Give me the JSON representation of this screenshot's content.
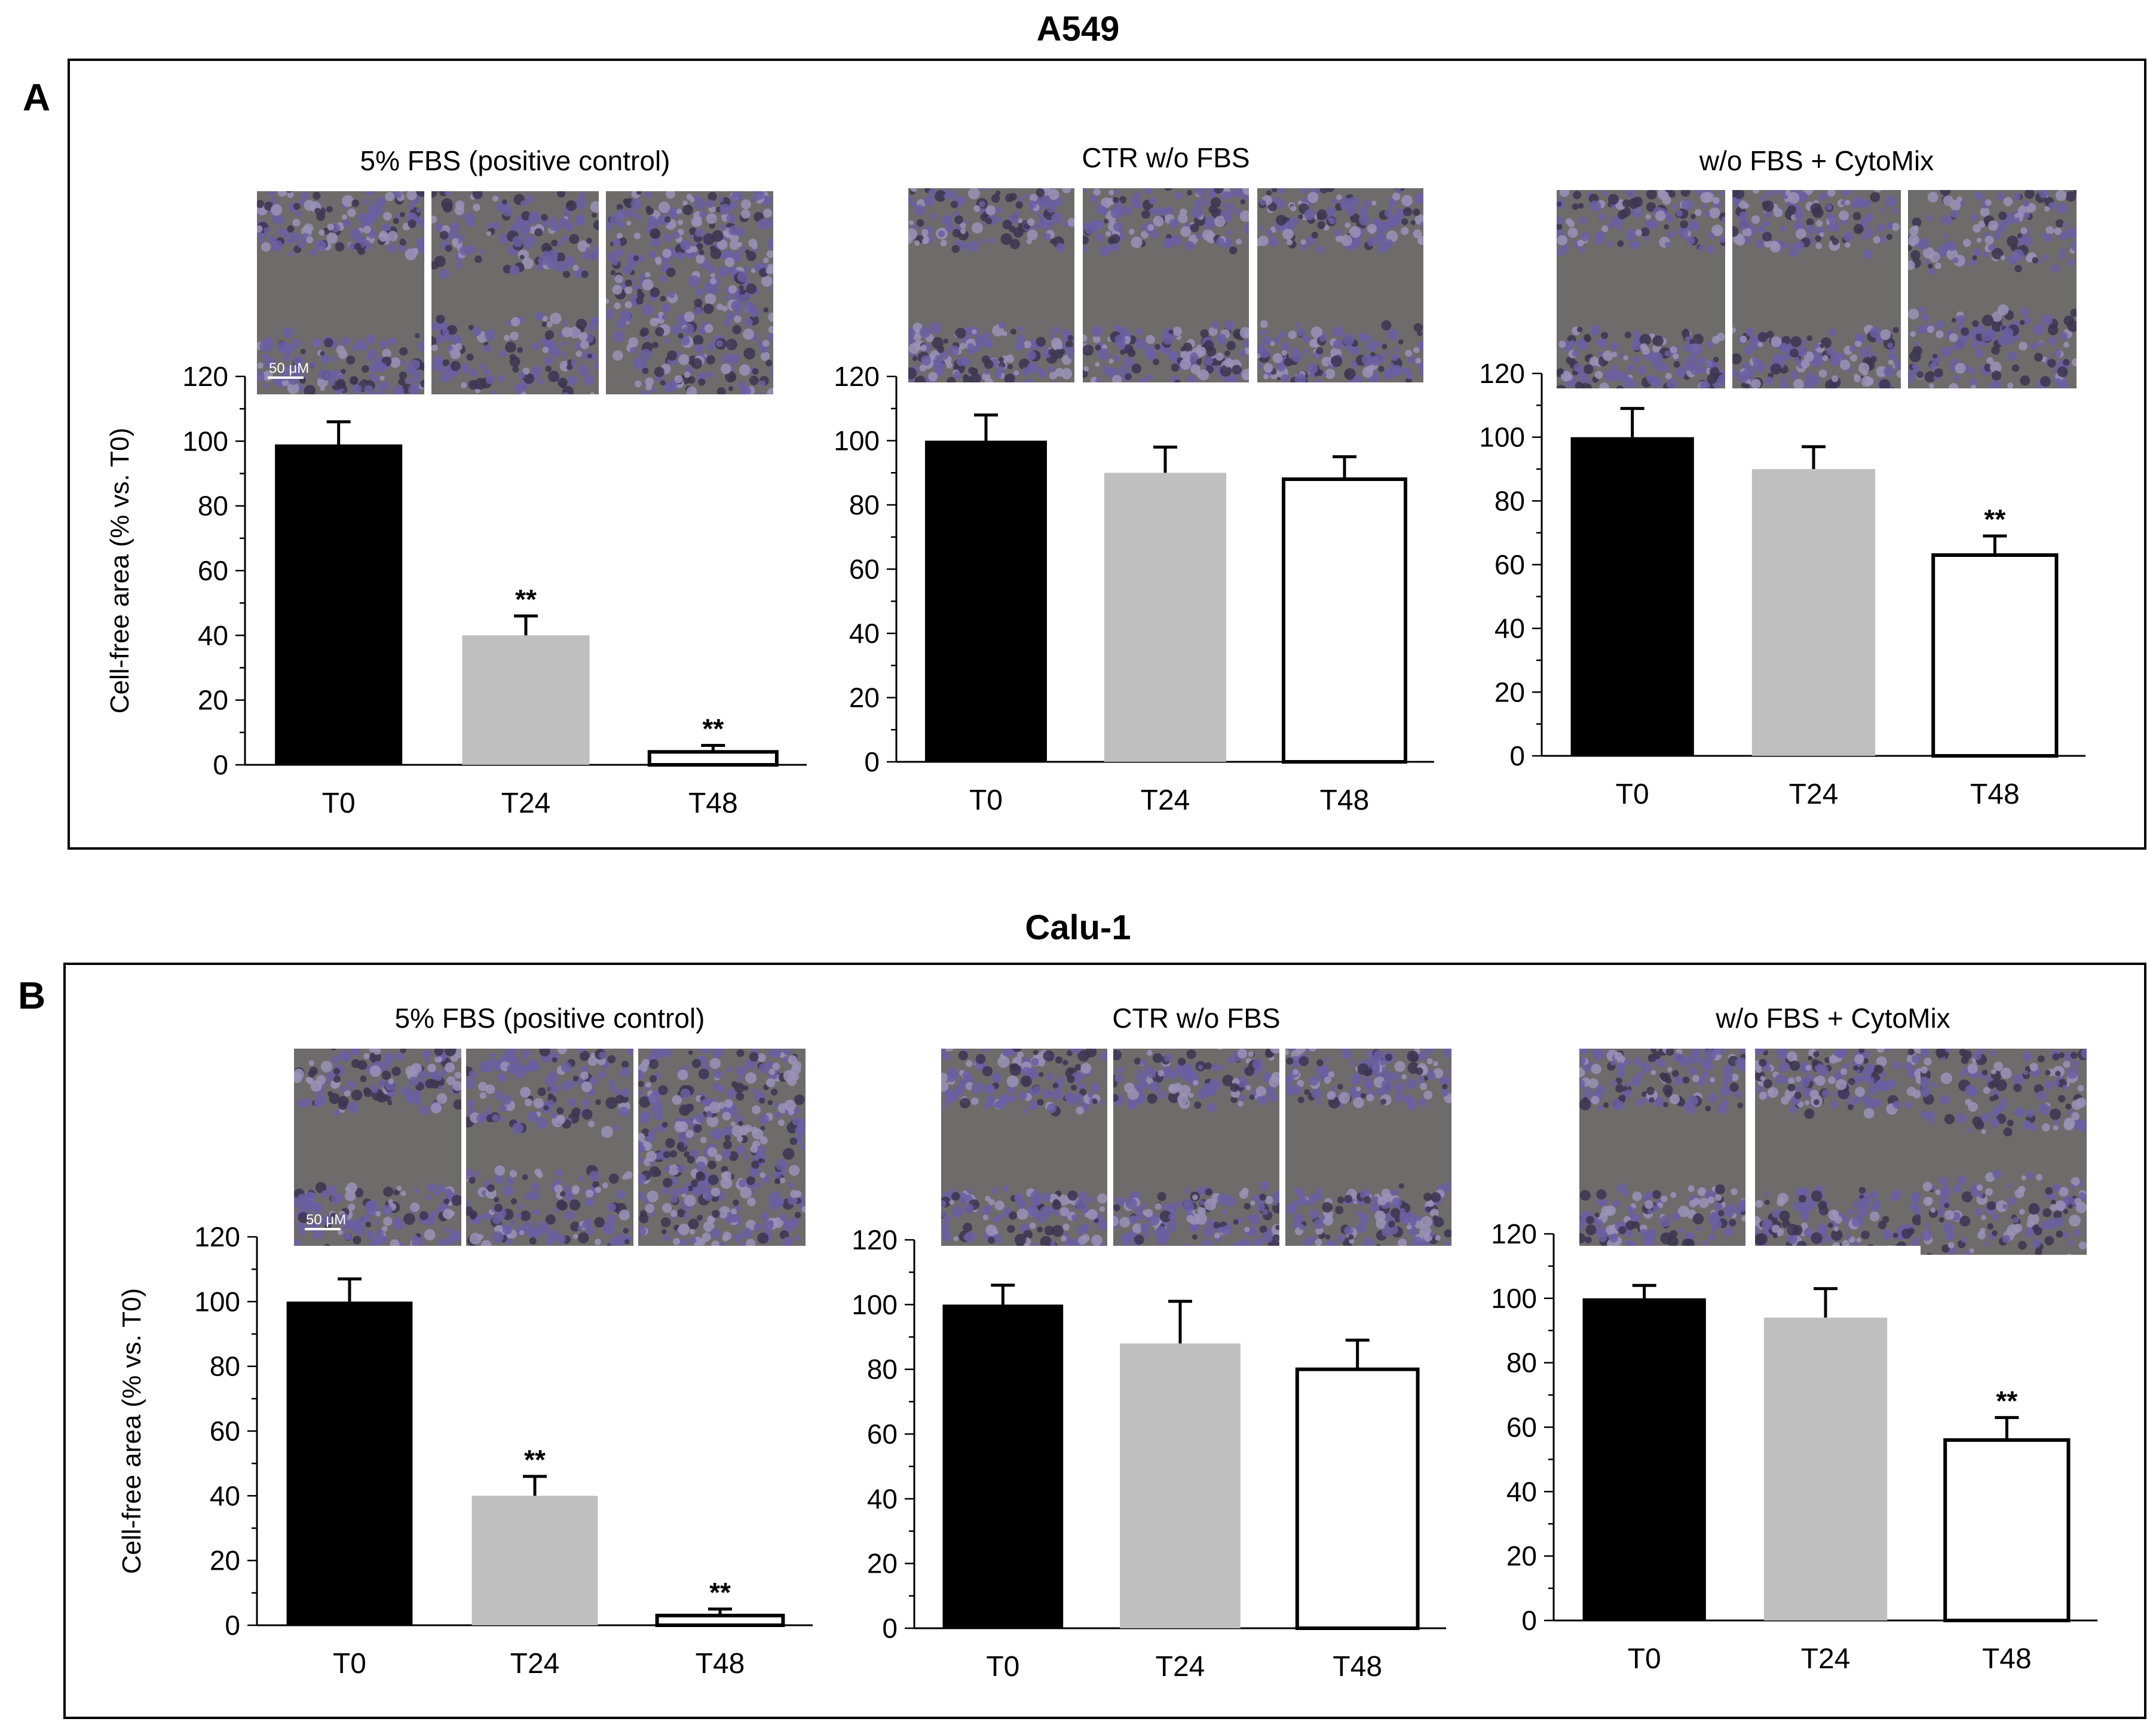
{
  "figure": {
    "y_axis_label": "Cell-free area (% vs. T0)",
    "significance_marker": "**",
    "scale_bar_label": "50 μM",
    "colors": {
      "T0": "#000000",
      "T24": "#bfbfbf",
      "T48": "#ffffff",
      "outline": "#000000",
      "micrograph_background": "#6e6c6b",
      "cell_purple": "#6a5fa3",
      "cell_dark": "#3b3550"
    }
  },
  "panels": [
    {
      "letter": "A",
      "cell_line": "A549",
      "conditions": [
        {
          "name": "5% FBS (positive control)",
          "micrograph_closure": [
            "open",
            "partial",
            "closed"
          ],
          "show_ylabel": true
        },
        {
          "name": "CTR w/o FBS",
          "micrograph_closure": [
            "open",
            "open",
            "open"
          ],
          "show_ylabel": false
        },
        {
          "name": "w/o FBS + CytoMix",
          "micrograph_closure": [
            "open",
            "open",
            "partial"
          ],
          "show_ylabel": false
        }
      ]
    },
    {
      "letter": "B",
      "cell_line": "Calu-1",
      "conditions": [
        {
          "name": "5% FBS (positive control)",
          "micrograph_closure": [
            "open",
            "partial",
            "closed"
          ],
          "show_ylabel": true
        },
        {
          "name": "CTR w/o FBS",
          "micrograph_closure": [
            "open",
            "open",
            "open"
          ],
          "show_ylabel": false
        },
        {
          "name": "w/o FBS + CytoMix",
          "micrograph_closure": [
            "open",
            "open",
            "partial"
          ],
          "show_ylabel": false
        }
      ]
    }
  ],
  "chart_data": [
    {
      "type": "bar",
      "panel": "A",
      "cell_line": "A549",
      "title": "5% FBS (positive control)",
      "categories": [
        "T0",
        "T24",
        "T48"
      ],
      "values": [
        99,
        40,
        4
      ],
      "errors": [
        7,
        6,
        2
      ],
      "significant": [
        false,
        true,
        true
      ],
      "ylabel": "Cell-free area (% vs. T0)",
      "ylim": [
        0,
        120
      ],
      "yticks": [
        0,
        20,
        40,
        60,
        80,
        100,
        120
      ]
    },
    {
      "type": "bar",
      "panel": "A",
      "cell_line": "A549",
      "title": "CTR w/o FBS",
      "categories": [
        "T0",
        "T24",
        "T48"
      ],
      "values": [
        100,
        90,
        88
      ],
      "errors": [
        8,
        8,
        7
      ],
      "significant": [
        false,
        false,
        false
      ],
      "ylabel": "",
      "ylim": [
        0,
        120
      ],
      "yticks": [
        0,
        20,
        40,
        60,
        80,
        100,
        120
      ]
    },
    {
      "type": "bar",
      "panel": "A",
      "cell_line": "A549",
      "title": "w/o FBS + CytoMix",
      "categories": [
        "T0",
        "T24",
        "T48"
      ],
      "values": [
        100,
        90,
        63
      ],
      "errors": [
        9,
        7,
        6
      ],
      "significant": [
        false,
        false,
        true
      ],
      "ylabel": "",
      "ylim": [
        0,
        120
      ],
      "yticks": [
        0,
        20,
        40,
        60,
        80,
        100,
        120
      ]
    },
    {
      "type": "bar",
      "panel": "B",
      "cell_line": "Calu-1",
      "title": "5% FBS (positive control)",
      "categories": [
        "T0",
        "T24",
        "T48"
      ],
      "values": [
        100,
        40,
        3
      ],
      "errors": [
        7,
        6,
        2
      ],
      "significant": [
        false,
        true,
        true
      ],
      "ylabel": "Cell-free area (% vs. T0)",
      "ylim": [
        0,
        120
      ],
      "yticks": [
        0,
        20,
        40,
        60,
        80,
        100,
        120
      ]
    },
    {
      "type": "bar",
      "panel": "B",
      "cell_line": "Calu-1",
      "title": "CTR w/o FBS",
      "categories": [
        "T0",
        "T24",
        "T48"
      ],
      "values": [
        100,
        88,
        80
      ],
      "errors": [
        6,
        13,
        9
      ],
      "significant": [
        false,
        false,
        false
      ],
      "ylabel": "",
      "ylim": [
        0,
        120
      ],
      "yticks": [
        0,
        20,
        40,
        60,
        80,
        100,
        120
      ]
    },
    {
      "type": "bar",
      "panel": "B",
      "cell_line": "Calu-1",
      "title": "w/o FBS + CytoMix",
      "categories": [
        "T0",
        "T24",
        "T48"
      ],
      "values": [
        100,
        94,
        56
      ],
      "errors": [
        4,
        9,
        7
      ],
      "significant": [
        false,
        false,
        true
      ],
      "ylabel": "",
      "ylim": [
        0,
        120
      ],
      "yticks": [
        0,
        20,
        40,
        60,
        80,
        100,
        120
      ]
    }
  ]
}
